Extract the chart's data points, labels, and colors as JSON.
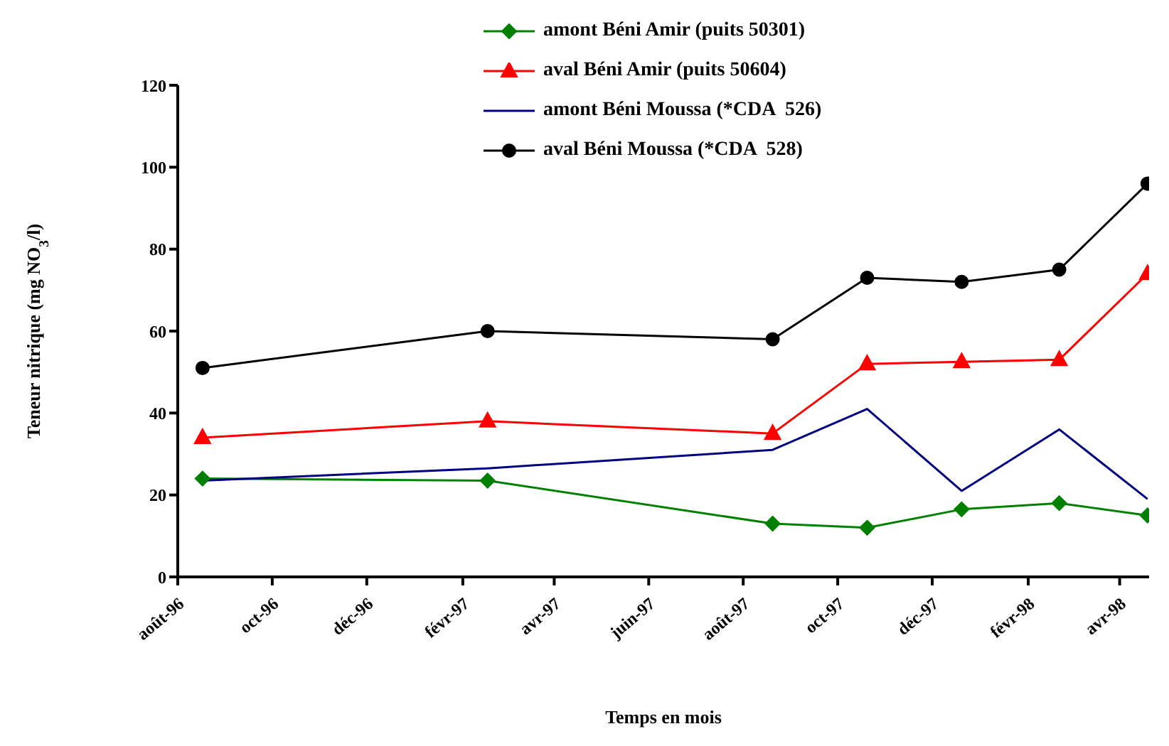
{
  "chart_data": {
    "type": "line",
    "xlabel": "Temps en mois",
    "ylabel": "Teneur nitrique (mg NO$_{3}$/l)",
    "x": [
      "1996-08-17",
      "1997-02-17",
      "1997-08-20",
      "1997-10-20",
      "1997-12-20",
      "1998-02-21",
      "1998-04-19"
    ],
    "xlim": [
      "1996-08-01",
      "1998-04-20"
    ],
    "xticks": [
      {
        "value": "1996-08-01",
        "label": "août-96"
      },
      {
        "value": "1996-10-01",
        "label": "oct-96"
      },
      {
        "value": "1996-12-01",
        "label": "déc-96"
      },
      {
        "value": "1997-02-01",
        "label": "févr-97"
      },
      {
        "value": "1997-04-01",
        "label": "avr-97"
      },
      {
        "value": "1997-06-01",
        "label": "juin-97"
      },
      {
        "value": "1997-08-01",
        "label": "août-97"
      },
      {
        "value": "1997-10-01",
        "label": "oct-97"
      },
      {
        "value": "1997-12-01",
        "label": "déc-97"
      },
      {
        "value": "1998-02-01",
        "label": "févr-98"
      },
      {
        "value": "1998-04-01",
        "label": "avr-98"
      }
    ],
    "ylim": [
      0,
      120
    ],
    "yticks": [
      0,
      20,
      40,
      60,
      80,
      100,
      120
    ],
    "grid": false,
    "legend": "top",
    "series": [
      {
        "name": "amont Béni Amir (puits 50301)",
        "color": "#008000",
        "marker": "diamond",
        "values": [
          24,
          23.5,
          13,
          12,
          16.5,
          18,
          15
        ]
      },
      {
        "name": "aval Béni Amir (puits 50604)",
        "color": "#ff0000",
        "marker": "triangle",
        "values": [
          34,
          38,
          35,
          52,
          52.5,
          53,
          74
        ]
      },
      {
        "name": "amont Béni Moussa (*CDA  526)",
        "color": "#000080",
        "marker": "none",
        "values": [
          23.5,
          26.5,
          31,
          41,
          21,
          36,
          19
        ]
      },
      {
        "name": "aval Béni Moussa (*CDA  528)",
        "color": "#000000",
        "marker": "circle",
        "values": [
          51,
          60,
          58,
          73,
          72,
          75,
          96
        ]
      }
    ]
  }
}
